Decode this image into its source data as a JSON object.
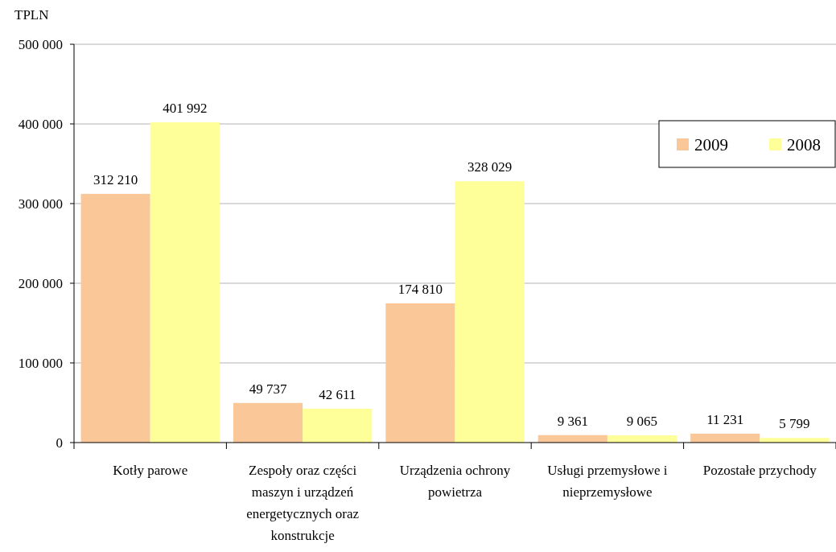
{
  "chart_data": {
    "type": "bar",
    "ylabel": "TPLN",
    "categories": [
      "Kotły parowe",
      "Zespoły oraz części maszyn i urządzeń energetycznych oraz konstrukcje",
      "Urządzenia ochrony powietrza",
      "Usługi przemysłowe i nieprzemysłowe",
      "Pozostałe przychody"
    ],
    "series": [
      {
        "name": "2009",
        "color": "#fac898",
        "values": [
          312210,
          49737,
          174810,
          9361,
          11231
        ]
      },
      {
        "name": "2008",
        "color": "#ffff99",
        "values": [
          401992,
          42611,
          328029,
          9065,
          5799
        ]
      }
    ],
    "ylim": [
      0,
      500000
    ],
    "yticks": [
      0,
      {
        "value": 100000,
        "label": "100 000"
      },
      {
        "value": 200000,
        "label": "200 000"
      },
      {
        "value": 300000,
        "label": "300 000"
      },
      {
        "value": 400000,
        "label": "400 000"
      },
      {
        "value": 500000,
        "label": "500 000"
      }
    ],
    "grid": "y",
    "data_labels": true,
    "legend": "top right"
  }
}
